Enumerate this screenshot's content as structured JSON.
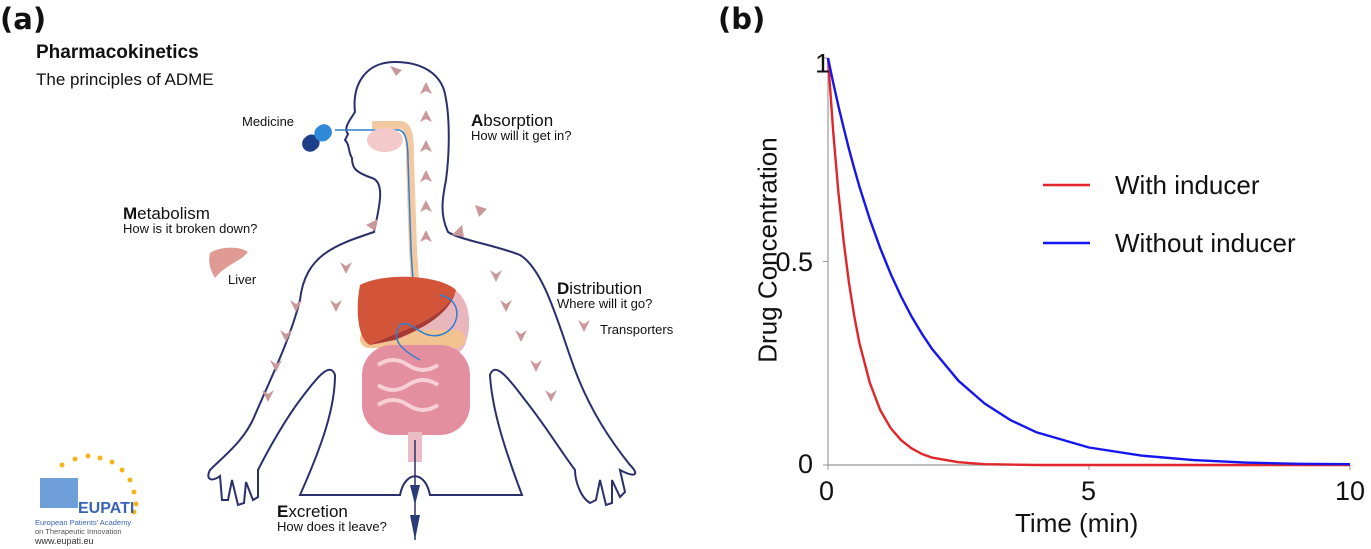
{
  "panel_a": {
    "label": "(a)",
    "title": "Pharmacokinetics",
    "subtitle": "The principles of ADME",
    "medicine_label": "Medicine",
    "absorption": {
      "initial": "A",
      "rest": "bsorption",
      "question": "How will it get in?"
    },
    "metabolism": {
      "initial": "M",
      "rest": "etabolism",
      "question": "How is it broken down?"
    },
    "liver_label": "Liver",
    "distribution": {
      "initial": "D",
      "rest": "istribution",
      "question": "Where will it go?"
    },
    "transporters_label": "Transporters",
    "excretion": {
      "initial": "E",
      "rest": "xcretion",
      "question": "How does it leave?"
    },
    "logo": {
      "name": "EUPATI",
      "line1": "European Patients' Academy",
      "line2": "on Therapeutic Innovation",
      "url": "www.eupati.eu"
    },
    "colors": {
      "outline": "#2b2f6b",
      "arrow": "#c9989a",
      "liver": "#d2553a",
      "intestine": "#e39aa8",
      "pill": "#2e7fd0"
    }
  },
  "panel_b": {
    "label": "(b)"
  },
  "chart_data": {
    "type": "line",
    "title": "",
    "xlabel": "Time (min)",
    "ylabel": "Drug Concentration",
    "xlim": [
      0,
      10
    ],
    "ylim": [
      0,
      1
    ],
    "xticks": [
      "0",
      "5",
      "10"
    ],
    "yticks": [
      "0",
      "0.5",
      "1"
    ],
    "grid": false,
    "legend_position": "center-right",
    "x": [
      0,
      0.1,
      0.2,
      0.3,
      0.4,
      0.5,
      0.6,
      0.8,
      1,
      1.2,
      1.4,
      1.6,
      1.8,
      2,
      2.5,
      3,
      3.5,
      4,
      5,
      6,
      7,
      8,
      9,
      10
    ],
    "series": [
      {
        "name": "With inducer",
        "color": "#e0262b",
        "values": [
          1,
          0.819,
          0.67,
          0.549,
          0.449,
          0.368,
          0.301,
          0.202,
          0.135,
          0.091,
          0.061,
          0.041,
          0.027,
          0.018,
          0.007,
          0.002,
          0.001,
          0,
          0,
          0,
          0,
          0,
          0,
          0
        ]
      },
      {
        "name": "Without inducer",
        "color": "#1515f0",
        "values": [
          1,
          0.939,
          0.882,
          0.828,
          0.777,
          0.73,
          0.685,
          0.604,
          0.533,
          0.47,
          0.414,
          0.365,
          0.322,
          0.284,
          0.207,
          0.151,
          0.11,
          0.08,
          0.043,
          0.023,
          0.012,
          0.006,
          0.003,
          0.002
        ]
      }
    ]
  }
}
